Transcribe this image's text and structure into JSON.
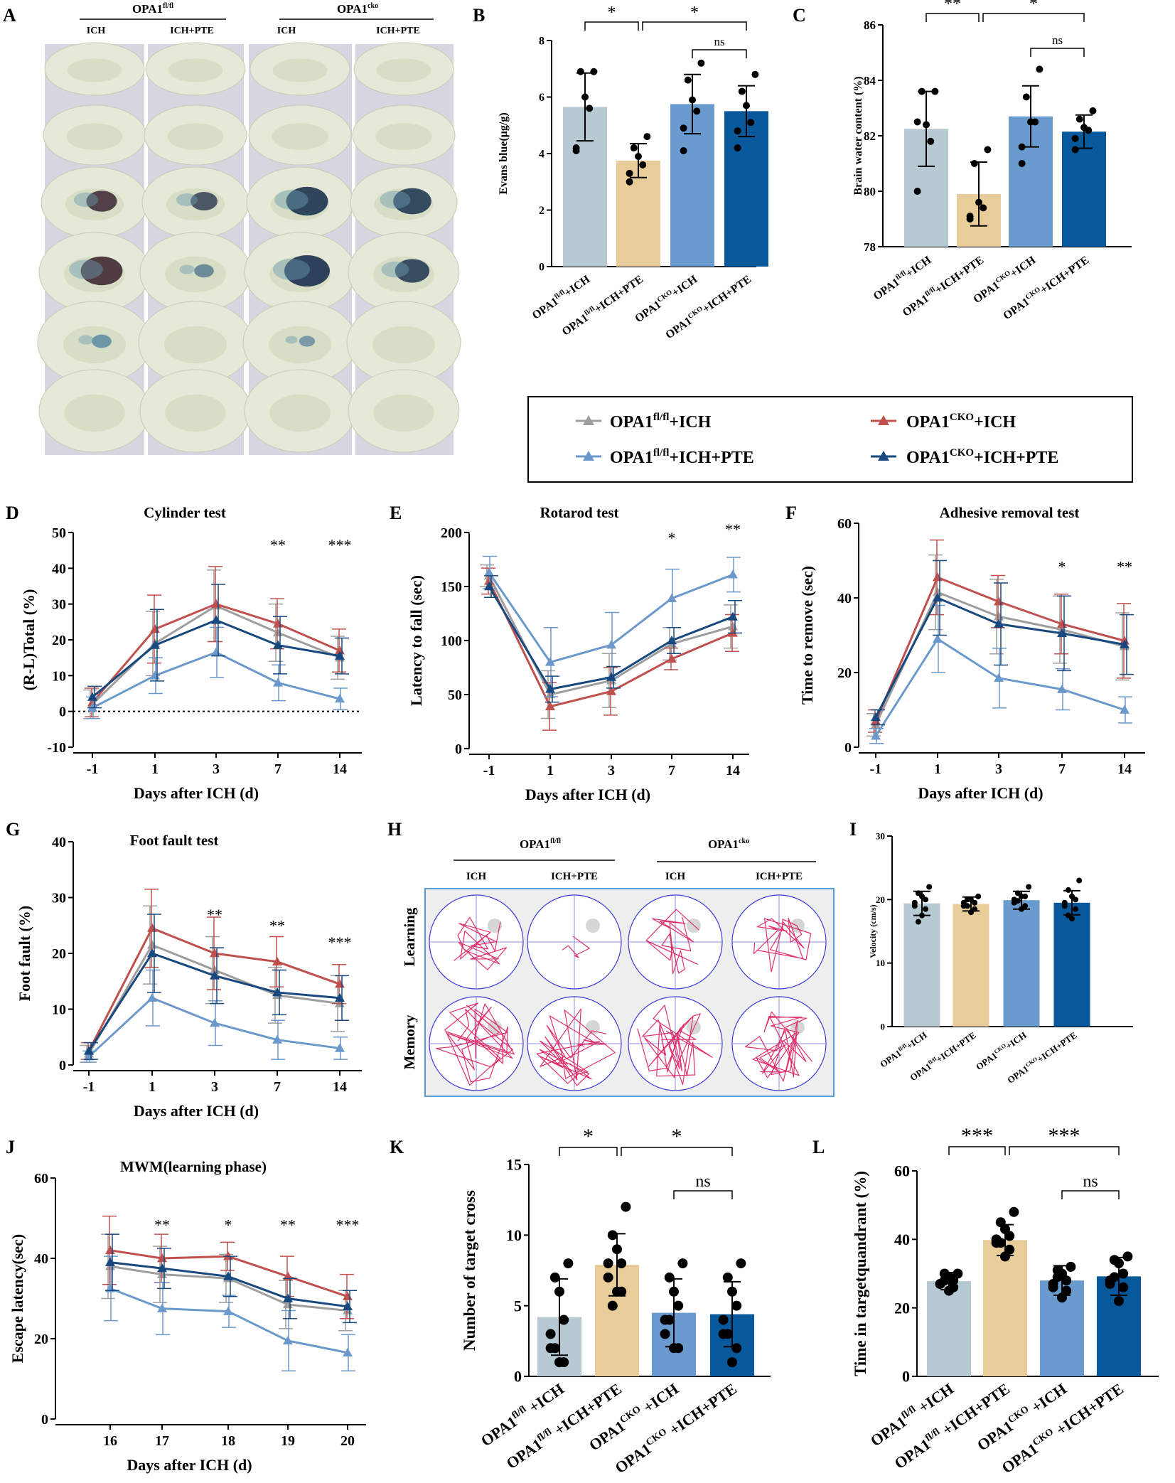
{
  "colors": {
    "ich_fl": "#b7c9d3",
    "pte_fl": "#e8cc9a",
    "ich_cko": "#6a9bcf",
    "pte_cko": "#07599c",
    "line_ich_fl": "#9e9e9e",
    "line_pte_fl": "#6c99cb",
    "line_ich_cko": "#c0504d",
    "line_pte_cko": "#17487e"
  },
  "panelA": {
    "letter": "A",
    "group_fl": "OPA1",
    "group_fl_sup": "fl/fl",
    "group_cko": "OPA1",
    "group_cko_sup": "cko",
    "cols": [
      "ICH",
      "ICH+PTE",
      "ICH",
      "ICH+PTE"
    ]
  },
  "panelH": {
    "letter": "H",
    "group_fl": "OPA1",
    "group_fl_sup": "fl/fl",
    "group_cko": "OPA1",
    "group_cko_sup": "cko",
    "cols": [
      "ICH",
      "ICH+PTE",
      "ICH",
      "ICH+PTE"
    ],
    "rows": [
      "Learning",
      "Memory"
    ]
  },
  "legend": {
    "items": [
      {
        "base": "OPA1",
        "sup": "fl/fl",
        "rest": "+ICH",
        "color": "#9e9e9e"
      },
      {
        "base": "OPA1",
        "sup": "CKO",
        "rest": "+ICH",
        "color": "#c0504d"
      },
      {
        "base": "OPA1",
        "sup": "fl/fl",
        "rest": "+ICH+PTE",
        "color": "#6c99cb"
      },
      {
        "base": "OPA1",
        "sup": "CKO",
        "rest": "+ICH+PTE",
        "color": "#17487e"
      }
    ]
  },
  "chart_data": [
    {
      "id": "B",
      "type": "bar",
      "ylabel": "Evans blue(μg/g)",
      "ylim": [
        0,
        8
      ],
      "yticks": [
        0,
        2,
        4,
        6,
        8
      ],
      "categories": [
        {
          "base": "OPA1",
          "sup": "fl/fl",
          "rest": "+ICH"
        },
        {
          "base": "OPA1",
          "sup": "fl/fl",
          "rest": "+ICH+PTE"
        },
        {
          "base": "OPA1",
          "sup": "CKO",
          "rest": "+ICH"
        },
        {
          "base": "OPA1",
          "sup": "CKO",
          "rest": "+ICH+PTE"
        }
      ],
      "values": [
        5.65,
        3.75,
        5.75,
        5.5
      ],
      "errors": [
        1.2,
        0.6,
        1.05,
        0.9
      ],
      "points": [
        [
          6.9,
          6.9,
          6.0,
          5.6,
          4.2,
          4.1
        ],
        [
          4.6,
          4.2,
          3.9,
          3.6,
          3.3,
          3.0
        ],
        [
          7.2,
          6.6,
          5.9,
          5.5,
          4.9,
          4.1
        ],
        [
          6.8,
          6.2,
          5.7,
          5.1,
          4.8,
          4.2
        ]
      ],
      "significance": [
        {
          "from": 0,
          "to": 1,
          "label": "*",
          "level": 0
        },
        {
          "from": 1,
          "to": 3,
          "label": "*",
          "level": 0
        },
        {
          "from": 2,
          "to": 3,
          "label": "ns",
          "level": 1
        }
      ]
    },
    {
      "id": "C",
      "type": "bar",
      "ylabel": "Brain water content (%)",
      "ylim": [
        78,
        86
      ],
      "yticks": [
        78,
        80,
        82,
        84,
        86
      ],
      "categories": [
        {
          "base": "OPA1",
          "sup": "fl/fl",
          "rest": "+ICH"
        },
        {
          "base": "OPA1",
          "sup": "fl/fl",
          "rest": "+ICH+PTE"
        },
        {
          "base": "OPA1",
          "sup": "CKO",
          "rest": "+ICH"
        },
        {
          "base": "OPA1",
          "sup": "CKO",
          "rest": "+ICH+PTE"
        }
      ],
      "values": [
        82.25,
        79.9,
        82.7,
        82.15
      ],
      "errors": [
        1.35,
        1.15,
        1.1,
        0.6
      ],
      "points": [
        [
          83.6,
          83.6,
          82.4,
          81.8,
          80.0,
          82.5
        ],
        [
          81.5,
          81.0,
          79.6,
          79.4,
          79.1,
          79.0
        ],
        [
          84.4,
          83.4,
          82.5,
          82.5,
          81.6,
          81.0
        ],
        [
          82.9,
          82.6,
          82.3,
          82.2,
          81.9,
          81.5
        ]
      ],
      "significance": [
        {
          "from": 0,
          "to": 1,
          "label": "**",
          "level": 0
        },
        {
          "from": 1,
          "to": 3,
          "label": "*",
          "level": 0
        },
        {
          "from": 2,
          "to": 3,
          "label": "ns",
          "level": 1
        }
      ]
    },
    {
      "id": "D",
      "type": "line",
      "title": "Cylinder test",
      "xlabel": "Days after ICH (d)",
      "ylabel": "(R-L)Total (%)",
      "ylim": [
        -10,
        50
      ],
      "yticks": [
        -10,
        0,
        10,
        20,
        30,
        40,
        50
      ],
      "categories": [
        "-1",
        "1",
        "3",
        "7",
        "14"
      ],
      "zero_line": true,
      "series": [
        {
          "name": "OPA1fl/fl+ICH",
          "color": "#9e9e9e",
          "values": [
            2,
            19,
            29.5,
            22,
            15
          ],
          "errors": [
            4,
            9,
            10,
            8,
            6
          ]
        },
        {
          "name": "OPA1CKO+ICH",
          "color": "#c0504d",
          "values": [
            2.5,
            23,
            30,
            24.5,
            17
          ],
          "errors": [
            4,
            9.5,
            10.5,
            7,
            6
          ]
        },
        {
          "name": "OPA1fl/fl+ICH+PTE",
          "color": "#6c99cb",
          "values": [
            1,
            10,
            16.5,
            8,
            3.5
          ],
          "errors": [
            3,
            5,
            7,
            5,
            3
          ]
        },
        {
          "name": "OPA1CKO+ICH+PTE",
          "color": "#17487e",
          "values": [
            4,
            18.5,
            25.5,
            18.5,
            15.5
          ],
          "errors": [
            3,
            10,
            10,
            8,
            5
          ]
        }
      ],
      "annotations": [
        {
          "x": 3,
          "label": "**",
          "y": 45
        },
        {
          "x": 4,
          "label": "***",
          "y": 45
        }
      ]
    },
    {
      "id": "E",
      "type": "line",
      "title": "Rotarod test",
      "xlabel": "Days after ICH (d)",
      "ylabel": "Latency to fall (sec)",
      "ylim": [
        0,
        200
      ],
      "yticks": [
        0,
        50,
        100,
        150,
        200
      ],
      "categories": [
        "-1",
        "1",
        "3",
        "7",
        "14"
      ],
      "series": [
        {
          "name": "OPA1fl/fl+ICH",
          "color": "#9e9e9e",
          "values": [
            160,
            50,
            63,
            97,
            113
          ],
          "errors": [
            10,
            22,
            25,
            15,
            20
          ]
        },
        {
          "name": "OPA1CKO+ICH",
          "color": "#c0504d",
          "values": [
            155,
            39,
            53,
            83,
            107
          ],
          "errors": [
            12,
            22,
            22,
            10,
            17
          ]
        },
        {
          "name": "OPA1fl/fl+ICH+PTE",
          "color": "#6c99cb",
          "values": [
            163,
            80,
            96,
            139,
            161
          ],
          "errors": [
            15,
            32,
            30,
            27,
            16
          ]
        },
        {
          "name": "OPA1CKO+ICH+PTE",
          "color": "#17487e",
          "values": [
            150,
            55,
            66,
            100,
            122
          ],
          "errors": [
            10,
            12,
            10,
            12,
            15
          ]
        }
      ],
      "annotations": [
        {
          "x": 3,
          "label": "*",
          "y": 190
        },
        {
          "x": 4,
          "label": "**",
          "y": 198
        }
      ]
    },
    {
      "id": "F",
      "type": "line",
      "title": "Adhesive removal test",
      "xlabel": "Days after ICH (d)",
      "ylabel": "Time to remove (sec)",
      "ylim": [
        0,
        60
      ],
      "yticks": [
        0,
        20,
        40,
        60
      ],
      "categories": [
        "-1",
        "1",
        "3",
        "7",
        "14"
      ],
      "series": [
        {
          "name": "OPA1fl/fl+ICH",
          "color": "#9e9e9e",
          "values": [
            6,
            41.5,
            35,
            31.5,
            27
          ],
          "errors": [
            3,
            10,
            10,
            9,
            9
          ]
        },
        {
          "name": "OPA1CKO+ICH",
          "color": "#c0504d",
          "values": [
            7,
            45.5,
            39,
            33,
            28.5
          ],
          "errors": [
            3,
            10,
            7,
            8,
            10
          ]
        },
        {
          "name": "OPA1fl/fl+ICH+PTE",
          "color": "#6c99cb",
          "values": [
            3,
            29,
            18.5,
            15.5,
            10
          ],
          "errors": [
            2,
            9,
            8,
            5.5,
            3.5
          ]
        },
        {
          "name": "OPA1CKO+ICH+PTE",
          "color": "#17487e",
          "values": [
            8,
            40,
            33,
            30.5,
            27.5
          ],
          "errors": [
            2,
            10,
            11,
            10,
            8
          ]
        }
      ],
      "annotations": [
        {
          "x": 3,
          "label": "*",
          "y": 47
        },
        {
          "x": 4,
          "label": "**",
          "y": 47
        }
      ]
    },
    {
      "id": "G",
      "type": "line",
      "title": "Foot fault test",
      "xlabel": "Days after ICH (d)",
      "ylabel": "Foot fault (%)",
      "ylim": [
        0,
        40
      ],
      "yticks": [
        0,
        10,
        20,
        30,
        40
      ],
      "categories": [
        "-1",
        "1",
        "3",
        "7",
        "14"
      ],
      "series": [
        {
          "name": "OPA1fl/fl+ICH",
          "color": "#9e9e9e",
          "values": [
            2,
            21.5,
            17,
            12.5,
            11
          ],
          "errors": [
            1.5,
            7,
            6,
            5,
            5
          ]
        },
        {
          "name": "OPA1CKO+ICH",
          "color": "#c0504d",
          "values": [
            2.5,
            24.5,
            20,
            18.5,
            14.5
          ],
          "errors": [
            1.5,
            7,
            6.5,
            4.5,
            3.5
          ]
        },
        {
          "name": "OPA1fl/fl+ICH+PTE",
          "color": "#6c99cb",
          "values": [
            1.5,
            12,
            7.5,
            4.5,
            3
          ],
          "errors": [
            1,
            5,
            4,
            3.5,
            2
          ]
        },
        {
          "name": "OPA1CKO+ICH+PTE",
          "color": "#17487e",
          "values": [
            2.5,
            20,
            16,
            13,
            12
          ],
          "errors": [
            1.5,
            7,
            5,
            4,
            4
          ]
        }
      ],
      "annotations": [
        {
          "x": 2,
          "label": "**",
          "y": 26
        },
        {
          "x": 3,
          "label": "**",
          "y": 24
        },
        {
          "x": 4,
          "label": "***",
          "y": 21
        }
      ]
    },
    {
      "id": "I",
      "type": "bar",
      "ylabel": "Velocity (cm/s)",
      "ylim": [
        0,
        30
      ],
      "yticks": [
        0,
        10,
        20,
        30
      ],
      "categories": [
        {
          "base": "OPA1",
          "sup": "fl/fl",
          "rest": "+ICH"
        },
        {
          "base": "OPA1",
          "sup": "fl/fl",
          "rest": "+ICH+PTE"
        },
        {
          "base": "OPA1",
          "sup": "CKO",
          "rest": "+ICH"
        },
        {
          "base": "OPA1",
          "sup": "CKO",
          "rest": "+ICH+PTE"
        }
      ],
      "values": [
        19.4,
        19.3,
        19.9,
        19.5
      ],
      "errors": [
        1.9,
        1.1,
        1.4,
        1.9
      ],
      "points": [
        [
          22,
          21,
          20.5,
          20,
          19.5,
          19,
          18.5,
          17.5,
          16.5
        ],
        [
          20.5,
          20,
          20,
          19.5,
          19.5,
          19,
          18.5,
          18,
          19
        ],
        [
          22,
          21,
          20.5,
          20.5,
          20,
          19.5,
          19,
          18.5,
          19.8
        ],
        [
          23,
          21.5,
          20.5,
          20,
          19.5,
          19,
          18.5,
          17,
          17.5
        ]
      ],
      "significance": []
    },
    {
      "id": "J",
      "type": "line",
      "title": "MWM(learning phase)",
      "xlabel": "Days after ICH (d)",
      "ylabel": "Escape latency(sec)",
      "ylim": [
        0,
        60
      ],
      "yticks": [
        0,
        20,
        40,
        60
      ],
      "categories": [
        "16",
        "17",
        "18",
        "19",
        "20"
      ],
      "series": [
        {
          "name": "OPA1fl/fl+ICH",
          "color": "#9e9e9e",
          "values": [
            38,
            36,
            35,
            28.5,
            27
          ],
          "errors": [
            8,
            7,
            6,
            6,
            5
          ]
        },
        {
          "name": "OPA1CKO+ICH",
          "color": "#c0504d",
          "values": [
            42,
            40,
            40.5,
            35.5,
            30.5
          ],
          "errors": [
            8.5,
            6,
            3.5,
            5,
            5.5
          ]
        },
        {
          "name": "OPA1fl/fl+ICH+PTE",
          "color": "#6c99cb",
          "values": [
            32.5,
            27.5,
            26.8,
            19.5,
            16.5
          ],
          "errors": [
            8,
            6.5,
            4,
            7.5,
            4.5
          ]
        },
        {
          "name": "OPA1CKO+ICH+PTE",
          "color": "#17487e",
          "values": [
            39,
            37.5,
            35.5,
            30,
            28
          ],
          "errors": [
            7,
            5,
            5,
            5,
            4
          ]
        }
      ],
      "annotations": [
        {
          "x": 1,
          "label": "**",
          "y": 47
        },
        {
          "x": 2,
          "label": "*",
          "y": 47
        },
        {
          "x": 3,
          "label": "**",
          "y": 47
        },
        {
          "x": 4,
          "label": "***",
          "y": 47
        }
      ]
    },
    {
      "id": "K",
      "type": "bar",
      "ylabel": "Number of target cross",
      "ylim": [
        0,
        15
      ],
      "yticks": [
        0,
        5,
        10,
        15
      ],
      "categories": [
        {
          "base": "OPA1",
          "sup": "fl/fl",
          "rest": " +ICH"
        },
        {
          "base": "OPA1",
          "sup": "fl/fl",
          "rest": " +ICH+PTE"
        },
        {
          "base": "OPA1",
          "sup": "CKO",
          "rest": " +ICH"
        },
        {
          "base": "OPA1",
          "sup": "CKO",
          "rest": " +ICH+PTE"
        }
      ],
      "values": [
        4.2,
        7.9,
        4.5,
        4.4
      ],
      "errors": [
        2.7,
        2.2,
        2.4,
        2.3
      ],
      "points": [
        [
          8,
          7,
          6,
          4,
          3,
          2,
          1,
          1,
          2
        ],
        [
          12,
          10,
          9,
          8,
          8,
          7,
          6,
          6,
          5
        ],
        [
          8,
          7,
          6,
          5,
          4,
          3,
          2,
          2,
          4
        ],
        [
          8,
          7,
          6,
          5,
          4,
          3,
          2,
          1,
          3
        ]
      ],
      "significance": [
        {
          "from": 0,
          "to": 1,
          "label": "*",
          "level": 0
        },
        {
          "from": 1,
          "to": 3,
          "label": "*",
          "level": 0
        },
        {
          "from": 2,
          "to": 3,
          "label": "ns",
          "level": 1
        }
      ]
    },
    {
      "id": "L",
      "type": "bar",
      "ylabel": "Time in targetquandrant (%)",
      "ylim": [
        0,
        60
      ],
      "yticks": [
        0,
        20,
        40,
        60
      ],
      "categories": [
        {
          "base": "OPA1",
          "sup": "fl/fl",
          "rest": " +ICH"
        },
        {
          "base": "OPA1",
          "sup": "fl/fl",
          "rest": " +ICH+PTE"
        },
        {
          "base": "OPA1",
          "sup": "CKO",
          "rest": " +ICH"
        },
        {
          "base": "OPA1",
          "sup": "CKO",
          "rest": " +ICH+PTE"
        }
      ],
      "values": [
        27.8,
        39.8,
        28,
        29.2
      ],
      "errors": [
        2.5,
        4.5,
        4.3,
        5.5
      ],
      "points": [
        [
          30,
          30,
          29,
          28,
          27,
          27,
          26,
          25,
          28
        ],
        [
          48,
          45,
          43,
          41,
          40,
          39,
          37,
          35,
          39
        ],
        [
          32,
          31,
          30,
          28,
          27,
          26,
          25,
          23,
          29
        ],
        [
          35,
          34,
          33,
          30,
          28,
          27,
          26,
          22,
          29
        ]
      ],
      "significance": [
        {
          "from": 0,
          "to": 1,
          "label": "***",
          "level": 0
        },
        {
          "from": 1,
          "to": 3,
          "label": "***",
          "level": 0
        },
        {
          "from": 2,
          "to": 3,
          "label": "ns",
          "level": 1
        }
      ]
    }
  ]
}
